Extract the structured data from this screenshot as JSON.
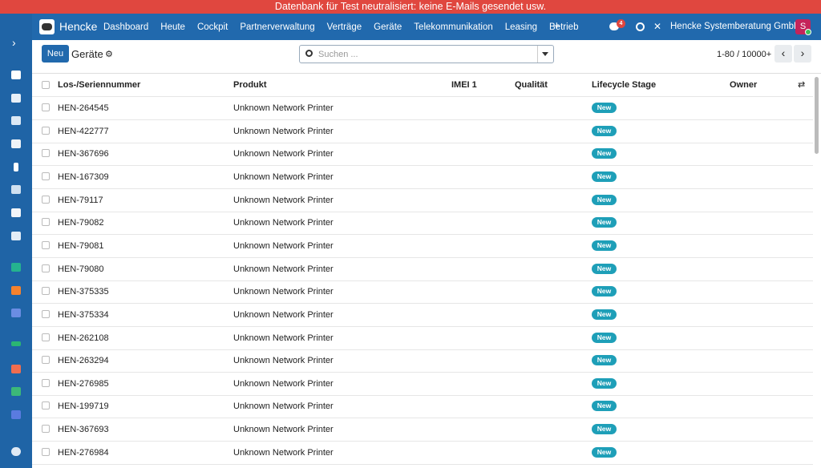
{
  "banner": "Datenbank für Test neutralisiert: keine E-Mails gesendet usw.",
  "navbar": {
    "brand": "Hencke",
    "menu": [
      "Dashboard",
      "Heute",
      "Cockpit",
      "Partnerverwaltung",
      "Verträge",
      "Geräte",
      "Telekommunikation",
      "Leasing",
      "Betrieb"
    ],
    "message_count": "4",
    "company": "Hencke Systemberatung GmbH",
    "user_initial": "S"
  },
  "control_panel": {
    "new_button": "Neu",
    "breadcrumb": "Geräte",
    "search_placeholder": "Suchen ...",
    "pager": "1-80 / 10000+"
  },
  "table": {
    "columns": [
      "Los-/Seriennummer",
      "Produkt",
      "IMEI 1",
      "Qualität",
      "Lifecycle Stage",
      "Owner"
    ],
    "rows": [
      [
        "HEN-264545",
        "Unknown Network Printer",
        "New"
      ],
      [
        "HEN-422777",
        "Unknown Network Printer",
        "New"
      ],
      [
        "HEN-367696",
        "Unknown Network Printer",
        "New"
      ],
      [
        "HEN-167309",
        "Unknown Network Printer",
        "New"
      ],
      [
        "HEN-79117",
        "Unknown Network Printer",
        "New"
      ],
      [
        "HEN-79082",
        "Unknown Network Printer",
        "New"
      ],
      [
        "HEN-79081",
        "Unknown Network Printer",
        "New"
      ],
      [
        "HEN-79080",
        "Unknown Network Printer",
        "New"
      ],
      [
        "HEN-375335",
        "Unknown Network Printer",
        "New"
      ],
      [
        "HEN-375334",
        "Unknown Network Printer",
        "New"
      ],
      [
        "HEN-262108",
        "Unknown Network Printer",
        "New"
      ],
      [
        "HEN-263294",
        "Unknown Network Printer",
        "New"
      ],
      [
        "HEN-276985",
        "Unknown Network Printer",
        "New"
      ],
      [
        "HEN-199719",
        "Unknown Network Printer",
        "New"
      ],
      [
        "HEN-367693",
        "Unknown Network Printer",
        "New"
      ],
      [
        "HEN-276984",
        "Unknown Network Printer",
        "New"
      ]
    ]
  }
}
